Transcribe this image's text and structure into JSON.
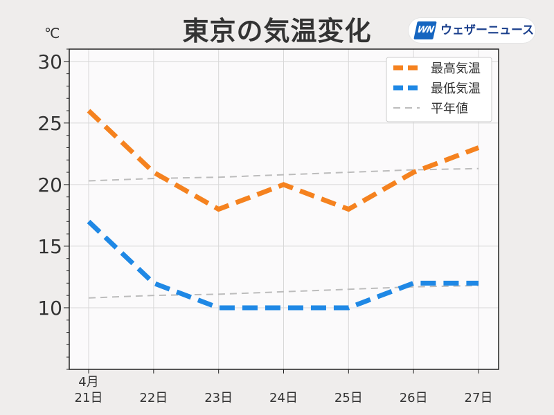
{
  "header": {
    "unit": "℃",
    "logo_mark": "WN",
    "logo_text": "ウェザーニュース"
  },
  "chart_data": {
    "type": "line",
    "title": "東京の気温変化",
    "xlabel": "",
    "ylabel": "℃",
    "month_label": "4月",
    "categories": [
      "21日",
      "22日",
      "23日",
      "24日",
      "25日",
      "26日",
      "27日"
    ],
    "ylim": [
      5,
      31
    ],
    "yticks": [
      10,
      15,
      20,
      25,
      30
    ],
    "grid": true,
    "legend_position": "top-right",
    "series": [
      {
        "name": "最高気温",
        "values": [
          26,
          21,
          18,
          20,
          18,
          21,
          23
        ],
        "color": "#f5821f",
        "style": "thick-dashed"
      },
      {
        "name": "最低気温",
        "values": [
          17,
          12,
          10,
          10,
          10,
          12,
          12
        ],
        "color": "#1f88e5",
        "style": "thick-dashed"
      },
      {
        "name": "平年値",
        "values": [
          20.3,
          20.5,
          20.6,
          20.8,
          21.0,
          21.2,
          21.3
        ],
        "color": "#bcbcbc",
        "style": "thin-dashed"
      },
      {
        "name": "平年値",
        "values": [
          10.8,
          11.0,
          11.1,
          11.3,
          11.5,
          11.7,
          11.8
        ],
        "color": "#bcbcbc",
        "style": "thin-dashed",
        "legend": false
      }
    ]
  }
}
